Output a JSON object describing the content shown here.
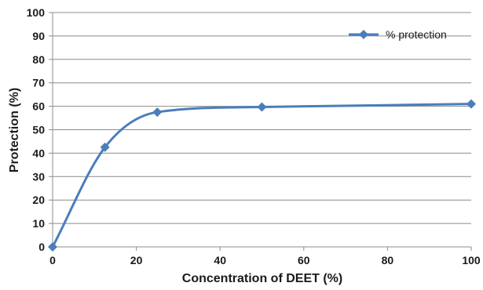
{
  "chart_data": {
    "type": "line",
    "title": "",
    "xlabel": "Concentration of DEET (%)",
    "ylabel": "Protection (%)",
    "xlim": [
      0,
      100
    ],
    "ylim": [
      0,
      100
    ],
    "x_ticks": [
      0,
      20,
      40,
      60,
      80,
      100
    ],
    "y_ticks": [
      0,
      10,
      20,
      30,
      40,
      50,
      60,
      70,
      80,
      90,
      100
    ],
    "grid": "horizontal",
    "legend_position": "top-right",
    "smooth": true,
    "series": [
      {
        "name": "% protection",
        "color": "#4a7ebb",
        "marker": "diamond",
        "x": [
          0,
          12.5,
          25,
          50,
          100
        ],
        "y": [
          0,
          42.5,
          57.5,
          59.7,
          61.0
        ]
      }
    ]
  }
}
